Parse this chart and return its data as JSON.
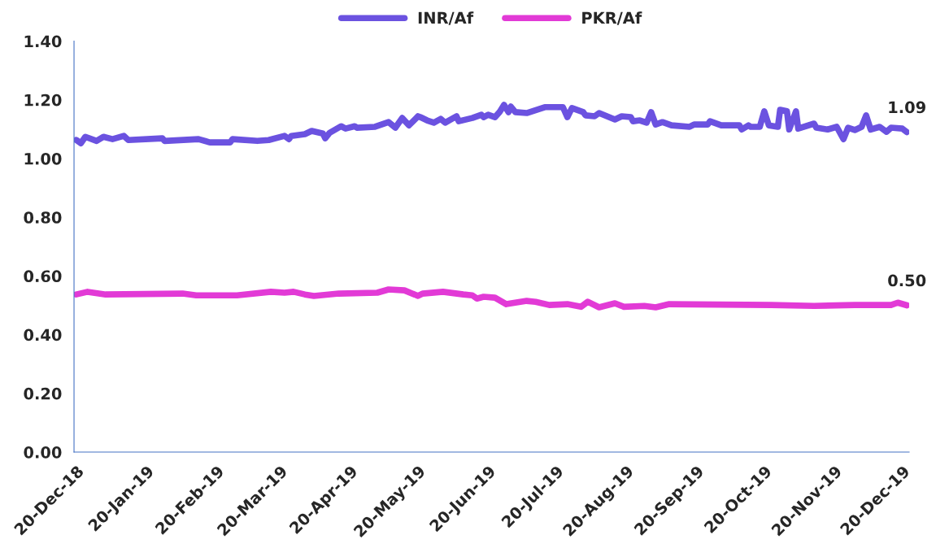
{
  "chart_data": {
    "type": "line",
    "legend": "top",
    "grid": false,
    "line_style": "solid",
    "marker": "none",
    "xlim": [
      "2018-12-19",
      "2019-12-23"
    ],
    "xticks": [
      {
        "value": "2018-12-20",
        "label": "20-Dec-18"
      },
      {
        "value": "2019-01-20",
        "label": "20-Jan-19"
      },
      {
        "value": "2019-02-20",
        "label": "20-Feb-19"
      },
      {
        "value": "2019-03-20",
        "label": "20-Mar-19"
      },
      {
        "value": "2019-04-20",
        "label": "20-Apr-19"
      },
      {
        "value": "2019-05-20",
        "label": "20-May-19"
      },
      {
        "value": "2019-06-20",
        "label": "20-Jun-19"
      },
      {
        "value": "2019-07-20",
        "label": "20-Jul-19"
      },
      {
        "value": "2019-08-20",
        "label": "20-Aug-19"
      },
      {
        "value": "2019-09-20",
        "label": "20-Sep-19"
      },
      {
        "value": "2019-10-20",
        "label": "20-Oct-19"
      },
      {
        "value": "2019-11-20",
        "label": "20-Nov-19"
      },
      {
        "value": "2019-12-20",
        "label": "20-Dec-19"
      }
    ],
    "ylim": [
      0,
      1.4
    ],
    "yticks": [
      {
        "value": 0,
        "label": "0.00"
      },
      {
        "value": 0.2,
        "label": "0.20"
      },
      {
        "value": 0.4,
        "label": "0.40"
      },
      {
        "value": 0.6,
        "label": "0.60"
      },
      {
        "value": 0.8,
        "label": "0.80"
      },
      {
        "value": 1.0,
        "label": "1.00"
      },
      {
        "value": 1.2,
        "label": "1.20"
      },
      {
        "value": 1.4,
        "label": "1.40"
      }
    ],
    "series": [
      {
        "name": "INR/Af",
        "color": "#6b52e0",
        "x": [
          "2018-12-20",
          "2018-12-22",
          "2018-12-24",
          "2018-12-29",
          "2019-01-01",
          "2019-01-05",
          "2019-01-10",
          "2019-01-12",
          "2019-01-27",
          "2019-01-28",
          "2019-02-12",
          "2019-02-17",
          "2019-02-26",
          "2019-02-27",
          "2019-03-10",
          "2019-03-15",
          "2019-03-22",
          "2019-03-24",
          "2019-03-25",
          "2019-03-31",
          "2019-04-03",
          "2019-04-08",
          "2019-04-09",
          "2019-04-11",
          "2019-04-16",
          "2019-04-18",
          "2019-04-22",
          "2019-04-23",
          "2019-05-01",
          "2019-05-07",
          "2019-05-10",
          "2019-05-13",
          "2019-05-16",
          "2019-05-20",
          "2019-05-21",
          "2019-05-24",
          "2019-05-27",
          "2019-05-30",
          "2019-06-01",
          "2019-06-06",
          "2019-06-07",
          "2019-06-13",
          "2019-06-17",
          "2019-06-18",
          "2019-06-20",
          "2019-06-23",
          "2019-06-25",
          "2019-06-27",
          "2019-06-29",
          "2019-06-30",
          "2019-07-02",
          "2019-07-07",
          "2019-07-15",
          "2019-07-23",
          "2019-07-25",
          "2019-07-27",
          "2019-08-01",
          "2019-08-02",
          "2019-08-06",
          "2019-08-08",
          "2019-08-15",
          "2019-08-18",
          "2019-08-22",
          "2019-08-23",
          "2019-08-26",
          "2019-08-29",
          "2019-08-31",
          "2019-09-02",
          "2019-09-05",
          "2019-09-09",
          "2019-09-17",
          "2019-09-19",
          "2019-09-25",
          "2019-09-26",
          "2019-10-01",
          "2019-10-09",
          "2019-10-10",
          "2019-10-13",
          "2019-10-14",
          "2019-10-18",
          "2019-10-20",
          "2019-10-22",
          "2019-10-26",
          "2019-10-27",
          "2019-10-30",
          "2019-10-31",
          "2019-11-03",
          "2019-11-04",
          "2019-11-11",
          "2019-11-12",
          "2019-11-17",
          "2019-11-21",
          "2019-11-24",
          "2019-11-26",
          "2019-11-29",
          "2019-12-02",
          "2019-12-04",
          "2019-12-06",
          "2019-12-10",
          "2019-12-13",
          "2019-12-15",
          "2019-12-20",
          "2019-12-22"
        ],
        "values": [
          1.063,
          1.052,
          1.074,
          1.06,
          1.074,
          1.066,
          1.077,
          1.063,
          1.069,
          1.06,
          1.066,
          1.055,
          1.055,
          1.066,
          1.06,
          1.063,
          1.077,
          1.066,
          1.077,
          1.083,
          1.094,
          1.085,
          1.069,
          1.088,
          1.11,
          1.102,
          1.11,
          1.105,
          1.108,
          1.124,
          1.105,
          1.138,
          1.113,
          1.144,
          1.141,
          1.13,
          1.122,
          1.135,
          1.122,
          1.144,
          1.127,
          1.138,
          1.149,
          1.141,
          1.149,
          1.141,
          1.158,
          1.183,
          1.158,
          1.177,
          1.158,
          1.155,
          1.175,
          1.175,
          1.141,
          1.172,
          1.158,
          1.147,
          1.144,
          1.155,
          1.133,
          1.144,
          1.141,
          1.127,
          1.13,
          1.122,
          1.158,
          1.116,
          1.124,
          1.113,
          1.108,
          1.116,
          1.116,
          1.127,
          1.113,
          1.113,
          1.099,
          1.113,
          1.108,
          1.108,
          1.161,
          1.113,
          1.108,
          1.166,
          1.161,
          1.099,
          1.161,
          1.102,
          1.119,
          1.105,
          1.099,
          1.108,
          1.066,
          1.105,
          1.097,
          1.108,
          1.147,
          1.099,
          1.108,
          1.091,
          1.105,
          1.102,
          1.09
        ]
      },
      {
        "name": "PKR/Af",
        "color": "#e23ad6",
        "x": [
          "2018-12-20",
          "2018-12-25",
          "2019-01-02",
          "2019-02-05",
          "2019-02-11",
          "2019-03-01",
          "2019-03-16",
          "2019-03-22",
          "2019-03-26",
          "2019-03-31",
          "2019-04-04",
          "2019-04-15",
          "2019-05-02",
          "2019-05-07",
          "2019-05-14",
          "2019-05-20",
          "2019-05-22",
          "2019-05-31",
          "2019-06-09",
          "2019-06-13",
          "2019-06-15",
          "2019-06-18",
          "2019-06-23",
          "2019-06-28",
          "2019-07-07",
          "2019-07-11",
          "2019-07-17",
          "2019-07-25",
          "2019-07-31",
          "2019-08-03",
          "2019-08-08",
          "2019-08-15",
          "2019-08-19",
          "2019-08-28",
          "2019-09-02",
          "2019-09-08",
          "2019-10-23",
          "2019-11-11",
          "2019-11-29",
          "2019-12-15",
          "2019-12-18",
          "2019-12-22"
        ],
        "values": [
          0.537,
          0.546,
          0.537,
          0.54,
          0.534,
          0.534,
          0.546,
          0.543,
          0.546,
          0.537,
          0.532,
          0.54,
          0.543,
          0.554,
          0.551,
          0.532,
          0.54,
          0.546,
          0.537,
          0.534,
          0.523,
          0.529,
          0.526,
          0.504,
          0.515,
          0.512,
          0.501,
          0.504,
          0.495,
          0.512,
          0.493,
          0.507,
          0.495,
          0.498,
          0.493,
          0.504,
          0.501,
          0.498,
          0.501,
          0.501,
          0.509,
          0.5
        ]
      }
    ],
    "annotations": [
      {
        "text": "1.09",
        "x": "2019-12-22",
        "y": 1.09
      },
      {
        "text": "0.50",
        "x": "2019-12-22",
        "y": 0.5
      }
    ]
  }
}
